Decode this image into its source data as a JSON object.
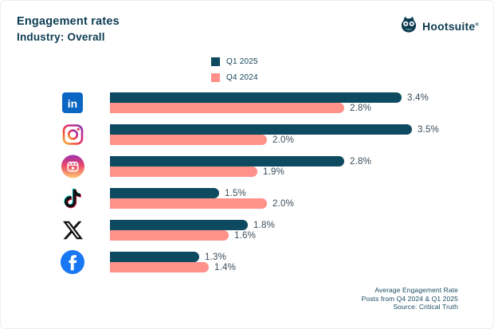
{
  "header": {
    "title": "Engagement rates",
    "subtitle": "Industry: Overall",
    "logo_text": "Hootsuite",
    "logo_reg": "®"
  },
  "chart_data": {
    "type": "bar",
    "orientation": "horizontal",
    "title": "Engagement rates",
    "subtitle": "Industry: Overall",
    "categories": [
      "LinkedIn",
      "Instagram",
      "Instagram Reels",
      "TikTok",
      "X",
      "Facebook"
    ],
    "series": [
      {
        "name": "Q1 2025",
        "color": "#0E4A60",
        "values": [
          3.4,
          3.5,
          2.8,
          1.5,
          1.8,
          1.3
        ]
      },
      {
        "name": "Q4 2024",
        "color": "#FF918A",
        "values": [
          2.8,
          2.0,
          1.9,
          2.0,
          1.6,
          1.4
        ]
      }
    ],
    "value_suffix": "%",
    "xlim": [
      0,
      3.5
    ],
    "grid": false,
    "legend_position": "top-center"
  },
  "footer": {
    "line1": "Average Engagement Rate",
    "line2": "Posts from Q4 2024 & Q1 2025",
    "line3": "Source: Critical Truth"
  },
  "colors": {
    "q1_bar": "#0E4A60",
    "q4_bar": "#FF918A",
    "title_text": "#0C3C52",
    "value_text": "#3C4C58"
  }
}
